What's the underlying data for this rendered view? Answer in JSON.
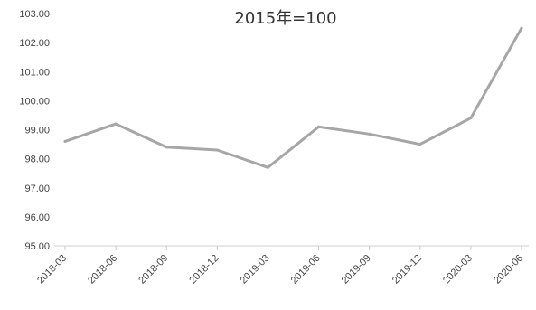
{
  "chart_data": {
    "type": "line",
    "title": "2015年=100",
    "xlabel": "",
    "ylabel": "",
    "categories": [
      "2018-03",
      "2018-06",
      "2018-09",
      "2018-12",
      "2019-03",
      "2019-06",
      "2019-09",
      "2019-12",
      "2020-03",
      "2020-06"
    ],
    "series": [
      {
        "values": [
          98.6,
          99.2,
          98.4,
          98.3,
          97.7,
          99.1,
          98.85,
          98.5,
          99.4,
          102.5
        ],
        "color": "#a6a6a6"
      }
    ],
    "ylim": [
      95,
      103
    ],
    "yticks": [
      "95.00",
      "96.00",
      "97.00",
      "98.00",
      "99.00",
      "100.00",
      "101.00",
      "102.00",
      "103.00"
    ],
    "grid": false,
    "legend": "none"
  }
}
